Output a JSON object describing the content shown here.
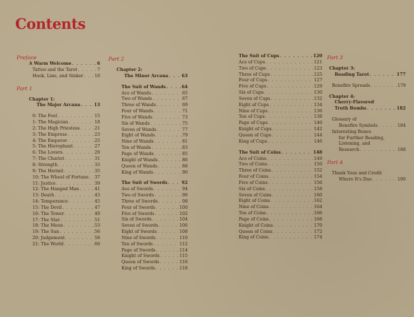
{
  "title": "Contents",
  "colors": {
    "accent": "#b3262a",
    "text": "#3a2216",
    "background": "#b5a78a"
  },
  "columns": [
    [
      {
        "kind": "part",
        "text": "Preface"
      },
      {
        "kind": "bold",
        "text": "A Warm Welcome",
        "page": "6",
        "lvl": 1
      },
      {
        "kind": "entry",
        "text": "Tattoo and the Tarot",
        "page": "7",
        "lvl": 2
      },
      {
        "kind": "entry",
        "text": "Hook, Line, and Sinker",
        "page": "10",
        "lvl": 2
      },
      {
        "kind": "part",
        "text": "Part 1",
        "gap": 1
      },
      {
        "kind": "bold",
        "text": "Chapter 1:",
        "lvl": 1,
        "gap": 1
      },
      {
        "kind": "bold",
        "text": "The Major Arcana",
        "page": "13",
        "lvl": 3
      },
      {
        "kind": "entry",
        "text": "0: The Fool",
        "page": "15",
        "lvl": 2,
        "gap": 1
      },
      {
        "kind": "entry",
        "text": "1: The Magician",
        "page": "18",
        "lvl": 2
      },
      {
        "kind": "entry",
        "text": "2: The High Priestess",
        "page": "21",
        "lvl": 2
      },
      {
        "kind": "entry",
        "text": "3: The Empress",
        "page": "23",
        "lvl": 2
      },
      {
        "kind": "entry",
        "text": "4: The Emperor",
        "page": "25",
        "lvl": 2
      },
      {
        "kind": "entry",
        "text": "5: The Hierophant",
        "page": "27",
        "lvl": 2
      },
      {
        "kind": "entry",
        "text": "6: The Lovers",
        "page": "29",
        "lvl": 2
      },
      {
        "kind": "entry",
        "text": "7: The Chariot",
        "page": "31",
        "lvl": 2
      },
      {
        "kind": "entry",
        "text": "8: Strength",
        "page": "33",
        "lvl": 2
      },
      {
        "kind": "entry",
        "text": "9: The Hermit",
        "page": "35",
        "lvl": 2
      },
      {
        "kind": "entry",
        "text": "10: The Wheel of Fortune",
        "page": "37",
        "lvl": 2
      },
      {
        "kind": "entry",
        "text": "11: Justice",
        "page": "39",
        "lvl": 2
      },
      {
        "kind": "entry",
        "text": "12: The Hanged Man",
        "page": "41",
        "lvl": 2
      },
      {
        "kind": "entry",
        "text": "13: Death",
        "page": "43",
        "lvl": 2
      },
      {
        "kind": "entry",
        "text": "14: Temperance",
        "page": "45",
        "lvl": 2
      },
      {
        "kind": "entry",
        "text": "15: The Devil",
        "page": "47",
        "lvl": 2
      },
      {
        "kind": "entry",
        "text": "16: The Tower",
        "page": "49",
        "lvl": 2
      },
      {
        "kind": "entry",
        "text": "17: The Star",
        "page": "51",
        "lvl": 2
      },
      {
        "kind": "entry",
        "text": "18: The Moon",
        "page": "53",
        "lvl": 2
      },
      {
        "kind": "entry",
        "text": "19: The Sun",
        "page": "56",
        "lvl": 2
      },
      {
        "kind": "entry",
        "text": "20: Judgement",
        "page": "58",
        "lvl": 2
      },
      {
        "kind": "entry",
        "text": "21: The World",
        "page": "60",
        "lvl": 2
      }
    ],
    [
      {
        "kind": "part",
        "text": "Part 2"
      },
      {
        "kind": "bold",
        "text": "Chapter 2:",
        "lvl": 1,
        "gap": 1
      },
      {
        "kind": "bold",
        "text": "The Minor Arcana",
        "page": "63",
        "lvl": 3
      },
      {
        "kind": "bold",
        "text": "The Suit of Wands",
        "page": "64",
        "lvl": 2,
        "gap": 1
      },
      {
        "kind": "entry",
        "text": "Ace of Wands",
        "page": "65",
        "lvl": 2
      },
      {
        "kind": "entry",
        "text": "Two of Wands",
        "page": "67",
        "lvl": 2
      },
      {
        "kind": "entry",
        "text": "Three of Wands",
        "page": "69",
        "lvl": 2
      },
      {
        "kind": "entry",
        "text": "Four of Wands",
        "page": "71",
        "lvl": 2
      },
      {
        "kind": "entry",
        "text": "Five of Wands",
        "page": "73",
        "lvl": 2
      },
      {
        "kind": "entry",
        "text": "Six of Wands",
        "page": "75",
        "lvl": 2
      },
      {
        "kind": "entry",
        "text": "Seven of Wands",
        "page": "77",
        "lvl": 2
      },
      {
        "kind": "entry",
        "text": "Eight of Wands",
        "page": "79",
        "lvl": 2
      },
      {
        "kind": "entry",
        "text": "Nine of Wands",
        "page": "81",
        "lvl": 2
      },
      {
        "kind": "entry",
        "text": "Ten of Wands",
        "page": "83",
        "lvl": 2
      },
      {
        "kind": "entry",
        "text": "Page of Wands",
        "page": "85",
        "lvl": 2
      },
      {
        "kind": "entry",
        "text": "Knight of Wands",
        "page": "86",
        "lvl": 2
      },
      {
        "kind": "entry",
        "text": "Queen of Wands",
        "page": "88",
        "lvl": 2
      },
      {
        "kind": "entry",
        "text": "King of Wands",
        "page": "90",
        "lvl": 2
      },
      {
        "kind": "bold",
        "text": "The Suit of Swords",
        "page": "92",
        "lvl": 2,
        "gap": 1
      },
      {
        "kind": "entry",
        "text": "Ace of Swords",
        "page": "94",
        "lvl": 2
      },
      {
        "kind": "entry",
        "text": "Two of Swords",
        "page": "96",
        "lvl": 2
      },
      {
        "kind": "entry",
        "text": "Three of Swords",
        "page": "98",
        "lvl": 2
      },
      {
        "kind": "entry",
        "text": "Four of Swords",
        "page": "100",
        "lvl": 2
      },
      {
        "kind": "entry",
        "text": "Five of Swords",
        "page": "102",
        "lvl": 2
      },
      {
        "kind": "entry",
        "text": "Six of Swords",
        "page": "104",
        "lvl": 2
      },
      {
        "kind": "entry",
        "text": "Seven of Swords",
        "page": "106",
        "lvl": 2
      },
      {
        "kind": "entry",
        "text": "Eight of Swords",
        "page": "108",
        "lvl": 2
      },
      {
        "kind": "entry",
        "text": "Nine of Swords",
        "page": "110",
        "lvl": 2
      },
      {
        "kind": "entry",
        "text": "Ten of Swords",
        "page": "112",
        "lvl": 2
      },
      {
        "kind": "entry",
        "text": "Page of Swords",
        "page": "114",
        "lvl": 2
      },
      {
        "kind": "entry",
        "text": "Knight of Swords",
        "page": "115",
        "lvl": 2
      },
      {
        "kind": "entry",
        "text": "Queen of Swords",
        "page": "116",
        "lvl": 2
      },
      {
        "kind": "entry",
        "text": "King of Swords",
        "page": "118",
        "lvl": 2
      }
    ],
    [
      {
        "kind": "bold",
        "text": "The Suit of Cups",
        "page": "120",
        "lvl": 0
      },
      {
        "kind": "entry",
        "text": "Ace of Cups",
        "page": "121",
        "lvl": 0
      },
      {
        "kind": "entry",
        "text": "Two of Cups",
        "page": "123",
        "lvl": 0
      },
      {
        "kind": "entry",
        "text": "Three of Cups",
        "page": "125",
        "lvl": 0
      },
      {
        "kind": "entry",
        "text": "Four of Cups",
        "page": "127",
        "lvl": 0
      },
      {
        "kind": "entry",
        "text": "Five of Cups",
        "page": "129",
        "lvl": 0
      },
      {
        "kind": "entry",
        "text": "Six of Cups",
        "page": "130",
        "lvl": 0
      },
      {
        "kind": "entry",
        "text": "Seven of Cups",
        "page": "132",
        "lvl": 0
      },
      {
        "kind": "entry",
        "text": "Eight of Cups",
        "page": "134",
        "lvl": 0
      },
      {
        "kind": "entry",
        "text": "Nine of Cups",
        "page": "136",
        "lvl": 0
      },
      {
        "kind": "entry",
        "text": "Ten of Cups",
        "page": "138",
        "lvl": 0
      },
      {
        "kind": "entry",
        "text": "Page of Cups",
        "page": "140",
        "lvl": 0
      },
      {
        "kind": "entry",
        "text": "Knight of Cups",
        "page": "142",
        "lvl": 0
      },
      {
        "kind": "entry",
        "text": "Queen of Cups",
        "page": "144",
        "lvl": 0
      },
      {
        "kind": "entry",
        "text": "King of Cups",
        "page": "146",
        "lvl": 0
      },
      {
        "kind": "bold",
        "text": "The Suit of Coins",
        "page": "148",
        "lvl": 0,
        "gap": 1
      },
      {
        "kind": "entry",
        "text": "Ace of Coins",
        "page": "149",
        "lvl": 0
      },
      {
        "kind": "entry",
        "text": "Two of Coins",
        "page": "150",
        "lvl": 0
      },
      {
        "kind": "entry",
        "text": "Three of Coins",
        "page": "152",
        "lvl": 0
      },
      {
        "kind": "entry",
        "text": "Four of Coins",
        "page": "154",
        "lvl": 0
      },
      {
        "kind": "entry",
        "text": "Five of Coins",
        "page": "156",
        "lvl": 0
      },
      {
        "kind": "entry",
        "text": "Six of Coins",
        "page": "158",
        "lvl": 0
      },
      {
        "kind": "entry",
        "text": "Seven of Coins",
        "page": "160",
        "lvl": 0
      },
      {
        "kind": "entry",
        "text": "Eight of Coins",
        "page": "162",
        "lvl": 0
      },
      {
        "kind": "entry",
        "text": "Nine of Coins",
        "page": "164",
        "lvl": 0
      },
      {
        "kind": "entry",
        "text": "Ten of Coins",
        "page": "166",
        "lvl": 0
      },
      {
        "kind": "entry",
        "text": "Page of Coins",
        "page": "168",
        "lvl": 0
      },
      {
        "kind": "entry",
        "text": "Knight of Coins",
        "page": "170",
        "lvl": 0
      },
      {
        "kind": "entry",
        "text": "Queen of Coins",
        "page": "172",
        "lvl": 0
      },
      {
        "kind": "entry",
        "text": "King of Coins",
        "page": "174",
        "lvl": 0
      }
    ],
    [
      {
        "kind": "part",
        "text": "Part 3"
      },
      {
        "kind": "bold",
        "text": "Chapter 3:",
        "lvl": 1,
        "gap": 1
      },
      {
        "kind": "bold",
        "text": "Reading Tarot",
        "page": "177",
        "lvl": 3
      },
      {
        "kind": "entry",
        "text": "Bonefire Spreads",
        "page": "179",
        "lvl": 2,
        "gap": 1
      },
      {
        "kind": "bold",
        "text": "Chapter 4:",
        "lvl": 1,
        "gap": 1
      },
      {
        "kind": "bold",
        "text": "Cherry-Flavored",
        "lvl": 3
      },
      {
        "kind": "bold",
        "text": "Truth Bombs",
        "page": "182",
        "lvl": 3
      },
      {
        "kind": "entry",
        "text": "Glossary of",
        "lvl": 2,
        "gap": 1
      },
      {
        "kind": "entry",
        "text": "Bonefire Symbols",
        "page": "184",
        "lvl": 4
      },
      {
        "kind": "entry",
        "text": "Interesting Bones",
        "lvl": 2
      },
      {
        "kind": "entry",
        "text": "for Further Reading,",
        "lvl": 4
      },
      {
        "kind": "entry",
        "text": "Listening, and",
        "lvl": 4
      },
      {
        "kind": "entry",
        "text": "Research",
        "page": "188",
        "lvl": 4
      },
      {
        "kind": "part",
        "text": "Part 4",
        "gap": 1
      },
      {
        "kind": "entry",
        "text": "Thank Yous and Credit",
        "lvl": 2,
        "gap": 1
      },
      {
        "kind": "entry",
        "text": "Where It's Due",
        "page": "190",
        "lvl": 4
      }
    ]
  ]
}
